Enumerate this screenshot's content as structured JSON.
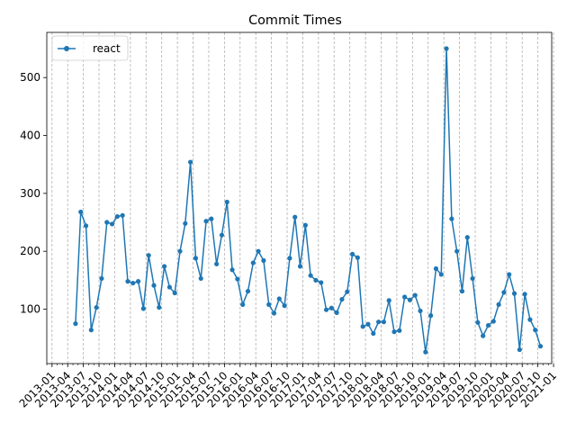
{
  "chart_data": {
    "type": "line",
    "title": "Commit Times",
    "xlabel": "",
    "ylabel": "",
    "legend": {
      "position": "upper left"
    },
    "x_axis": {
      "type": "date",
      "range": [
        "2012-12-01",
        "2020-12-21"
      ]
    },
    "ylim": [
      6,
      578
    ],
    "y_ticks": [
      100,
      200,
      300,
      400,
      500
    ],
    "x_tick_labels": [
      "2013-01",
      "2013-04",
      "2013-07",
      "2013-10",
      "2014-01",
      "2014-04",
      "2014-07",
      "2014-10",
      "2015-01",
      "2015-04",
      "2015-07",
      "2015-10",
      "2016-01",
      "2016-04",
      "2016-07",
      "2016-10",
      "2017-01",
      "2017-04",
      "2017-07",
      "2017-10",
      "2018-01",
      "2018-04",
      "2018-07",
      "2018-10",
      "2019-01",
      "2019-04",
      "2019-07",
      "2019-10",
      "2020-01",
      "2020-04",
      "2020-07",
      "2020-10",
      "2021-01"
    ],
    "grid": "vertical dashed lines at month boundaries",
    "series": [
      {
        "name": "react",
        "color": "#1f77b4",
        "marker": "circle",
        "points": [
          [
            "2013-05",
            75
          ],
          [
            "2013-06",
            268
          ],
          [
            "2013-07",
            244
          ],
          [
            "2013-08",
            64
          ],
          [
            "2013-09",
            103
          ],
          [
            "2013-10",
            153
          ],
          [
            "2013-11",
            250
          ],
          [
            "2013-12",
            247
          ],
          [
            "2014-01",
            260
          ],
          [
            "2014-02",
            262
          ],
          [
            "2014-03",
            148
          ],
          [
            "2014-04",
            145
          ],
          [
            "2014-05",
            148
          ],
          [
            "2014-06",
            101
          ],
          [
            "2014-07",
            193
          ],
          [
            "2014-08",
            141
          ],
          [
            "2014-09",
            103
          ],
          [
            "2014-10",
            174
          ],
          [
            "2014-11",
            138
          ],
          [
            "2014-12",
            128
          ],
          [
            "2015-01",
            200
          ],
          [
            "2015-02",
            248
          ],
          [
            "2015-03",
            354
          ],
          [
            "2015-04",
            188
          ],
          [
            "2015-05",
            153
          ],
          [
            "2015-06",
            252
          ],
          [
            "2015-07",
            256
          ],
          [
            "2015-08",
            178
          ],
          [
            "2015-09",
            228
          ],
          [
            "2015-10",
            285
          ],
          [
            "2015-11",
            168
          ],
          [
            "2015-12",
            152
          ],
          [
            "2016-01",
            108
          ],
          [
            "2016-02",
            131
          ],
          [
            "2016-03",
            180
          ],
          [
            "2016-04",
            200
          ],
          [
            "2016-05",
            184
          ],
          [
            "2016-06",
            108
          ],
          [
            "2016-07",
            93
          ],
          [
            "2016-08",
            118
          ],
          [
            "2016-09",
            106
          ],
          [
            "2016-10",
            188
          ],
          [
            "2016-11",
            259
          ],
          [
            "2016-12",
            174
          ],
          [
            "2017-01",
            245
          ],
          [
            "2017-02",
            158
          ],
          [
            "2017-03",
            150
          ],
          [
            "2017-04",
            146
          ],
          [
            "2017-05",
            99
          ],
          [
            "2017-06",
            102
          ],
          [
            "2017-07",
            94
          ],
          [
            "2017-08",
            117
          ],
          [
            "2017-09",
            130
          ],
          [
            "2017-10",
            195
          ],
          [
            "2017-11",
            189
          ],
          [
            "2017-12",
            70
          ],
          [
            "2018-01",
            74
          ],
          [
            "2018-02",
            58
          ],
          [
            "2018-03",
            78
          ],
          [
            "2018-04",
            78
          ],
          [
            "2018-05",
            115
          ],
          [
            "2018-06",
            61
          ],
          [
            "2018-07",
            63
          ],
          [
            "2018-08",
            121
          ],
          [
            "2018-09",
            116
          ],
          [
            "2018-10",
            124
          ],
          [
            "2018-11",
            97
          ],
          [
            "2018-12",
            26
          ],
          [
            "2019-01",
            89
          ],
          [
            "2019-02",
            170
          ],
          [
            "2019-03",
            160
          ],
          [
            "2019-04",
            550
          ],
          [
            "2019-05",
            256
          ],
          [
            "2019-06",
            200
          ],
          [
            "2019-07",
            131
          ],
          [
            "2019-08",
            224
          ],
          [
            "2019-09",
            153
          ],
          [
            "2019-10",
            77
          ],
          [
            "2019-11",
            54
          ],
          [
            "2019-12",
            72
          ],
          [
            "2020-01",
            79
          ],
          [
            "2020-02",
            108
          ],
          [
            "2020-03",
            129
          ],
          [
            "2020-04",
            160
          ],
          [
            "2020-05",
            127
          ],
          [
            "2020-06",
            30
          ],
          [
            "2020-07",
            126
          ],
          [
            "2020-08",
            82
          ],
          [
            "2020-09",
            64
          ],
          [
            "2020-10",
            36
          ]
        ]
      }
    ]
  }
}
